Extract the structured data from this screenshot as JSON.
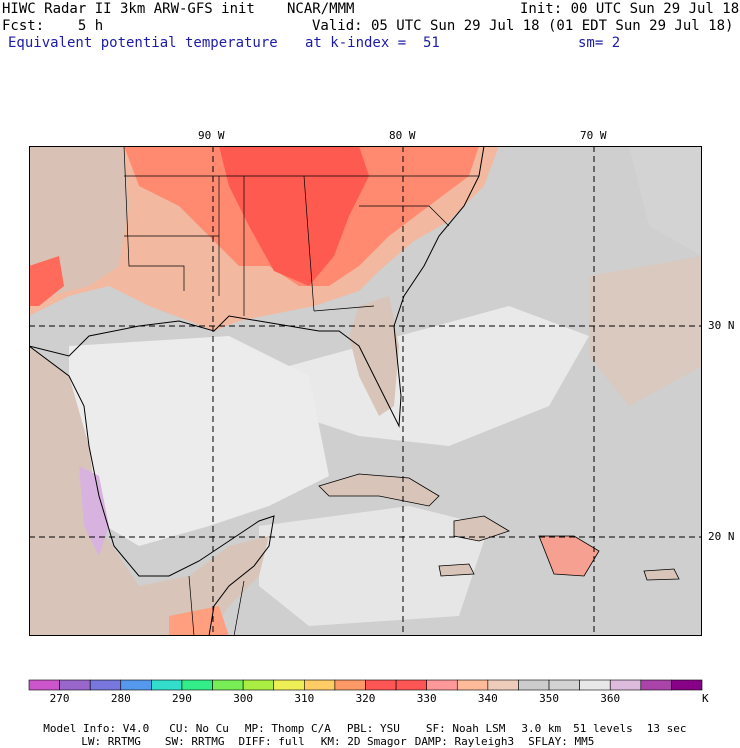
{
  "header": {
    "model_title": "HIWC Radar II 3km ARW-GFS init",
    "org": "NCAR/MMM",
    "init": "Init: 00 UTC Sun 29 Jul 18",
    "fcst": "Fcst:    5 h",
    "valid": "Valid: 05 UTC Sun 29 Jul 18 (01 EDT Sun 29 Jul 18)",
    "field": "Equivalent potential temperature",
    "level": "at k-index =  51",
    "smooth": "sm= 2"
  },
  "map": {
    "lon_labels": [
      {
        "text": "90 W",
        "lon": -90
      },
      {
        "text": "80 W",
        "lon": -80
      },
      {
        "text": "70 W",
        "lon": -70
      }
    ],
    "lat_labels": [
      {
        "text": "30 N",
        "lat": 30
      },
      {
        "text": "20 N",
        "lat": 20
      }
    ]
  },
  "colorbar": {
    "labels": [
      "270",
      "280",
      "290",
      "300",
      "310",
      "320",
      "330",
      "340",
      "350",
      "360"
    ],
    "unit": "K",
    "colors": [
      "#cc55cc",
      "#9966cc",
      "#7777dd",
      "#5599ee",
      "#33ddcc",
      "#33ee88",
      "#77ee55",
      "#aaee44",
      "#eeee55",
      "#ffcc66",
      "#ff9966",
      "#ff5555",
      "#ff5555",
      "#ff9999",
      "#ffbb99",
      "#eeccbb",
      "#cccccc",
      "#d3d3d3",
      "#e8e8e8",
      "#ddbbdd",
      "#aa44aa",
      "#880088"
    ]
  },
  "footer": {
    "line1": [
      "Model Info: V4.0",
      "CU: No Cu",
      "MP: Thomp C/A",
      "PBL: YSU",
      "SF: Noah LSM",
      "3.0 km",
      "51 levels",
      "13 sec"
    ],
    "line2": [
      "LW: RRTMG",
      "SW: RRTMG",
      "DIFF: full",
      "KM: 2D Smagor",
      "DAMP: Rayleigh3",
      "SFLAY: MM5"
    ]
  }
}
